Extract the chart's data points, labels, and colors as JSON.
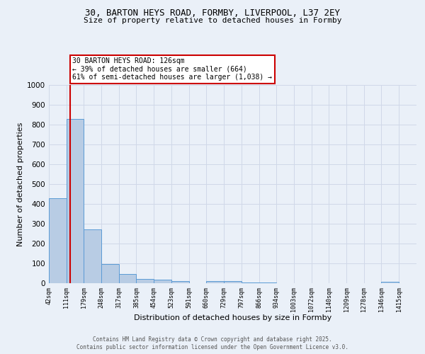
{
  "title_line1": "30, BARTON HEYS ROAD, FORMBY, LIVERPOOL, L37 2EY",
  "title_line2": "Size of property relative to detached houses in Formby",
  "xlabel": "Distribution of detached houses by size in Formby",
  "ylabel": "Number of detached properties",
  "bar_left_edges": [
    42,
    111,
    179,
    248,
    317,
    385,
    454,
    523,
    591,
    660,
    729,
    797,
    866,
    934,
    1003,
    1072,
    1140,
    1209,
    1278,
    1346
  ],
  "bar_widths": [
    69,
    68,
    69,
    69,
    68,
    69,
    69,
    68,
    69,
    69,
    68,
    69,
    68,
    69,
    69,
    68,
    69,
    69,
    68,
    69
  ],
  "bar_heights": [
    430,
    830,
    270,
    96,
    45,
    22,
    17,
    12,
    0,
    10,
    10,
    5,
    5,
    0,
    0,
    0,
    0,
    0,
    0,
    8
  ],
  "bar_color": "#b8cce4",
  "bar_edge_color": "#5b9bd5",
  "tick_labels": [
    "42sqm",
    "111sqm",
    "179sqm",
    "248sqm",
    "317sqm",
    "385sqm",
    "454sqm",
    "523sqm",
    "591sqm",
    "660sqm",
    "729sqm",
    "797sqm",
    "866sqm",
    "934sqm",
    "1003sqm",
    "1072sqm",
    "1140sqm",
    "1209sqm",
    "1278sqm",
    "1346sqm",
    "1415sqm"
  ],
  "tick_positions": [
    42,
    111,
    179,
    248,
    317,
    385,
    454,
    523,
    591,
    660,
    729,
    797,
    866,
    934,
    1003,
    1072,
    1140,
    1209,
    1278,
    1346,
    1415
  ],
  "property_size": 126,
  "red_line_color": "#cc0000",
  "annotation_text": "30 BARTON HEYS ROAD: 126sqm\n← 39% of detached houses are smaller (664)\n61% of semi-detached houses are larger (1,038) →",
  "annotation_box_color": "#ffffff",
  "annotation_box_edge_color": "#cc0000",
  "ylim": [
    0,
    1000
  ],
  "xlim": [
    42,
    1484
  ],
  "grid_color": "#d0d8e8",
  "background_color": "#eaf0f8",
  "footer_line1": "Contains HM Land Registry data © Crown copyright and database right 2025.",
  "footer_line2": "Contains public sector information licensed under the Open Government Licence v3.0."
}
